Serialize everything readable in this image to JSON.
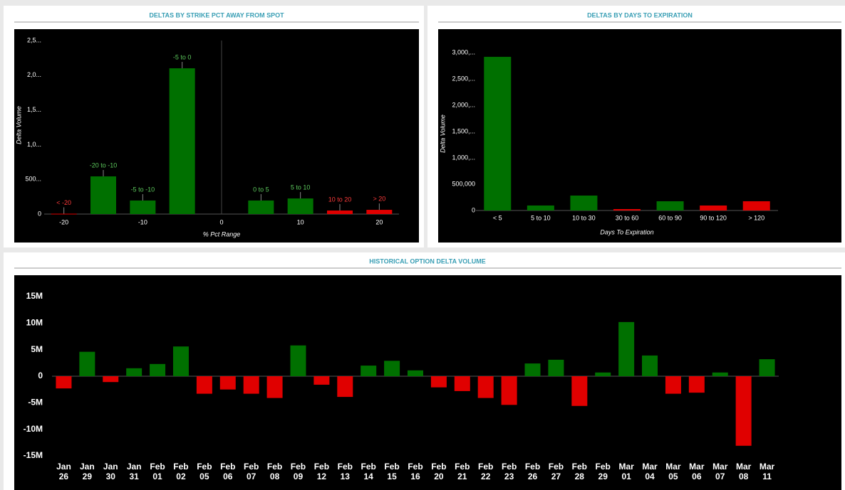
{
  "chart_data": [
    {
      "type": "bar",
      "title": "DELTAS BY STRIKE PCT AWAY FROM SPOT",
      "xlabel": "% Pct Range",
      "ylabel": "Delta Volume",
      "x": [
        -20,
        -15,
        -10,
        -5,
        5,
        10,
        15,
        20
      ],
      "categories": [
        "< -20",
        "-20 to -10",
        "-5 to -10",
        "-5 to 0",
        "0 to 5",
        "5 to 10",
        "10 to 20",
        "> 20"
      ],
      "values": [
        5000,
        543000,
        195000,
        2100000,
        195000,
        225000,
        51000,
        61000
      ],
      "colors": [
        "#e00000",
        "#007000",
        "#007000",
        "#007000",
        "#007000",
        "#007000",
        "#e00000",
        "#e00000"
      ],
      "label_colors": [
        "#ff3b3b",
        "#5cc85c",
        "#5cc85c",
        "#5cc85c",
        "#5cc85c",
        "#5cc85c",
        "#ff3b3b",
        "#ff3b3b"
      ],
      "xlim": [
        -22.5,
        22.5
      ],
      "xticks": [
        -20,
        -10,
        0,
        10,
        20
      ],
      "ylim": [
        0,
        2500000
      ],
      "yticks": [
        0,
        {
          "value": 500000,
          "label": "500..."
        },
        {
          "value": 1000000,
          "label": "1,0..."
        },
        {
          "value": 1500000,
          "label": "1,5..."
        },
        {
          "value": 2000000,
          "label": "2,0..."
        },
        {
          "value": 2500000,
          "label": "2,5..."
        }
      ]
    },
    {
      "type": "bar",
      "title": "DELTAS BY DAYS TO EXPIRATION",
      "xlabel": "Days To Expiration",
      "ylabel": "Delta Volume",
      "categories": [
        "< 5",
        "5 to 10",
        "10 to 30",
        "30 to 60",
        "60 to 90",
        "90 to 120",
        "> 120"
      ],
      "values": [
        2920000,
        95000,
        284000,
        27000,
        176000,
        95000,
        176000
      ],
      "colors": [
        "#007000",
        "#007000",
        "#007000",
        "#e00000",
        "#007000",
        "#e00000",
        "#e00000"
      ],
      "ylim": [
        0,
        3000000
      ],
      "yticks": [
        0,
        {
          "value": 500000,
          "label": "500,000"
        },
        {
          "value": 1000000,
          "label": "1,000,..."
        },
        {
          "value": 1500000,
          "label": "1,500,..."
        },
        {
          "value": 2000000,
          "label": "2,000,..."
        },
        {
          "value": 2500000,
          "label": "2,500,..."
        },
        {
          "value": 3000000,
          "label": "3,000,..."
        }
      ]
    },
    {
      "type": "bar",
      "title": "HISTORICAL OPTION DELTA VOLUME",
      "categories": [
        "Jan 26",
        "Jan 29",
        "Jan 30",
        "Jan 31",
        "Feb 01",
        "Feb 02",
        "Feb 05",
        "Feb 06",
        "Feb 07",
        "Feb 08",
        "Feb 09",
        "Feb 12",
        "Feb 13",
        "Feb 14",
        "Feb 15",
        "Feb 16",
        "Feb 20",
        "Feb 21",
        "Feb 22",
        "Feb 23",
        "Feb 26",
        "Feb 27",
        "Feb 28",
        "Feb 29",
        "Mar 01",
        "Mar 04",
        "Mar 05",
        "Mar 06",
        "Mar 07",
        "Mar 08",
        "Mar 11"
      ],
      "values": [
        -2300000,
        4600000,
        -1100000,
        1500000,
        2300000,
        5600000,
        -3300000,
        -2500000,
        -3300000,
        -4100000,
        5800000,
        -1600000,
        -3900000,
        2000000,
        2900000,
        1100000,
        -2100000,
        -2800000,
        -4100000,
        -5400000,
        2400000,
        3100000,
        -5600000,
        700000,
        10200000,
        3900000,
        -3300000,
        -3100000,
        700000,
        -13100000,
        3200000
      ],
      "positive_color": "#007000",
      "negative_color": "#e00000",
      "ylim": [
        -15000000,
        15000000
      ],
      "yticks": [
        {
          "value": -15000000,
          "label": "-15M"
        },
        {
          "value": -10000000,
          "label": "-10M"
        },
        {
          "value": -5000000,
          "label": "-5M"
        },
        0,
        {
          "value": 5000000,
          "label": "5M"
        },
        {
          "value": 10000000,
          "label": "10M"
        },
        {
          "value": 15000000,
          "label": "15M"
        }
      ]
    }
  ]
}
